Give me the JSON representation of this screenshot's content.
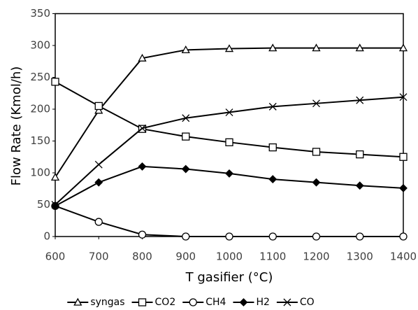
{
  "chart_data": {
    "type": "line",
    "x_label": "T gasifier (°C)",
    "y_label": "Flow Rate (Kmol/h)",
    "x": [
      600,
      700,
      800,
      900,
      1000,
      1100,
      1200,
      1300,
      1400
    ],
    "series": [
      {
        "name": "syngas",
        "color": "#000000",
        "marker": "triangle",
        "values": [
          93,
          198,
          280,
          293,
          295,
          296,
          296,
          296,
          296
        ]
      },
      {
        "name": "CO2",
        "color": "#000000",
        "marker": "square",
        "values": [
          243,
          205,
          169,
          157,
          148,
          140,
          133,
          129,
          125
        ]
      },
      {
        "name": "CH4",
        "color": "#000000",
        "marker": "circle",
        "values": [
          48,
          23,
          3,
          0,
          0,
          0,
          0,
          0,
          0
        ]
      },
      {
        "name": "H2",
        "color": "#000000",
        "marker": "diamond",
        "values": [
          48,
          85,
          110,
          106,
          99,
          90,
          85,
          80,
          76
        ]
      },
      {
        "name": "CO",
        "color": "#000000",
        "marker": "x",
        "values": [
          50,
          113,
          170,
          186,
          195,
          204,
          209,
          214,
          219
        ]
      }
    ],
    "xlim": [
      600,
      1400
    ],
    "xticks": [
      600,
      700,
      800,
      900,
      1000,
      1100,
      1200,
      1300,
      1400
    ],
    "ylim": [
      0,
      350
    ],
    "yticks": [
      0,
      50,
      100,
      150,
      200,
      250,
      300,
      350
    ],
    "grid": false,
    "legend": "bottom"
  }
}
